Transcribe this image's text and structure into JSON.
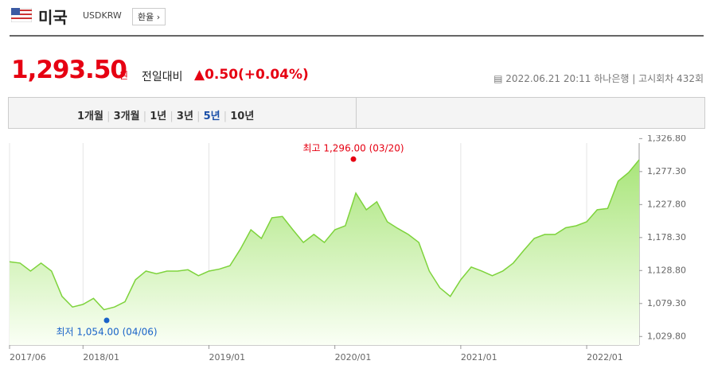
{
  "header": {
    "title": "미국",
    "code": "USDKRW",
    "button": "환율"
  },
  "quote": {
    "price": "1,293.50",
    "unit": "원",
    "change_label": "전일대비",
    "arrow": "▲",
    "change": "0.50",
    "change_pct": "(+0.04%)",
    "datetime": "2022.06.21 20:11",
    "bank": "하나은행",
    "round": "고시회차 432회"
  },
  "tabs": [
    "1개월",
    "3개월",
    "1년",
    "3년",
    "5년",
    "10년"
  ],
  "selected_tab": "5년",
  "chart_data": {
    "type": "area",
    "categories": [
      "2017/06",
      null,
      null,
      null,
      null,
      null,
      null,
      "2018/01",
      null,
      null,
      null,
      null,
      null,
      null,
      null,
      null,
      null,
      null,
      null,
      "2019/01",
      null,
      null,
      null,
      null,
      null,
      null,
      null,
      null,
      null,
      null,
      null,
      "2020/01",
      null,
      null,
      null,
      null,
      null,
      null,
      null,
      null,
      null,
      null,
      null,
      "2021/01",
      null,
      null,
      null,
      null,
      null,
      null,
      null,
      null,
      null,
      null,
      null,
      "2022/01",
      null,
      null,
      null,
      null,
      null
    ],
    "series": [
      {
        "name": "USDKRW",
        "color": "#7ed33c",
        "values": [
          1142,
          1140,
          1128,
          1140,
          1128,
          1090,
          1074,
          1078,
          1087,
          1070,
          1074,
          1082,
          1115,
          1128,
          1124,
          1128,
          1128,
          1130,
          1121,
          1128,
          1131,
          1136,
          1161,
          1190,
          1177,
          1208,
          1210,
          1190,
          1171,
          1183,
          1171,
          1190,
          1196,
          1245,
          1220,
          1232,
          1202,
          1192,
          1183,
          1171,
          1128,
          1103,
          1090,
          1115,
          1134,
          1128,
          1121,
          1128,
          1140,
          1159,
          1177,
          1183,
          1183,
          1193,
          1196,
          1202,
          1220,
          1222,
          1263,
          1276,
          1295
        ]
      }
    ],
    "ylim": [
      1017,
      1332
    ],
    "yticks": [
      {
        "value": 1029.8,
        "label": "1,029.80"
      },
      {
        "value": 1079.3,
        "label": "1,079.30"
      },
      {
        "value": 1128.8,
        "label": "1,128.80"
      },
      {
        "value": 1178.3,
        "label": "1,178.30"
      },
      {
        "value": 1227.8,
        "label": "1,227.80"
      },
      {
        "value": 1277.3,
        "label": "1,277.30"
      },
      {
        "value": 1326.8,
        "label": "1,326.80"
      }
    ],
    "annotations": [
      {
        "text": "최고 1,296.00 (03/20)",
        "value": 1296,
        "color": "#e60012"
      },
      {
        "text": "최저 1,054.00 (04/06)",
        "value": 1054,
        "color": "#1a63c9"
      }
    ]
  }
}
